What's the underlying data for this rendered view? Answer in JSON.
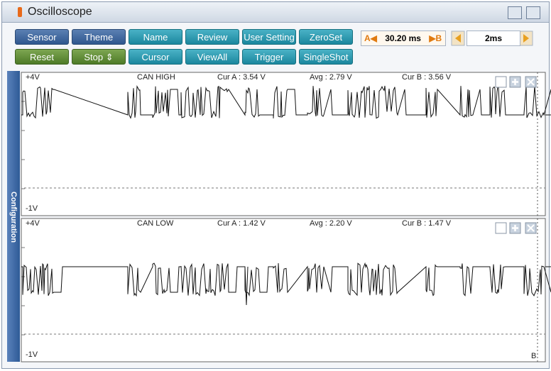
{
  "title": "Oscilloscope",
  "buttons": {
    "row1": [
      "Sensor",
      "Theme",
      "Name",
      "Review",
      "User Setting",
      "ZeroSet"
    ],
    "row2": [
      "Reset",
      "Stop ⇕",
      "Cursor",
      "ViewAll",
      "Trigger",
      "SingleShot"
    ]
  },
  "cursor": {
    "a": "A◀",
    "value": "30.20 ms",
    "b": "▶B"
  },
  "timebase": "2ms",
  "sidebar": "Configuration",
  "channels": [
    {
      "top": "+4V",
      "name": "CAN HIGH",
      "cur_a": "Cur A : 3.54 V",
      "avg": "Avg : 2.79 V",
      "cur_b": "Cur B : 3.56 V",
      "bottom": "-1V"
    },
    {
      "top": "+4V",
      "name": "CAN LOW",
      "cur_a": "Cur A : 1.42 V",
      "avg": "Avg : 2.20 V",
      "cur_b": "Cur B : 1.47 V",
      "bottom": "-1V",
      "marker": "B"
    }
  ]
}
